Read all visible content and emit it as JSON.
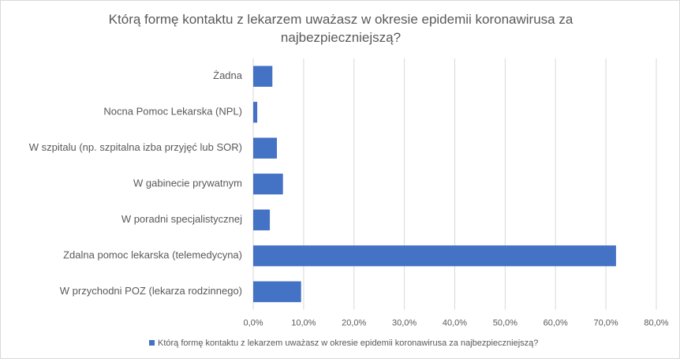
{
  "chart_data": {
    "type": "bar",
    "orientation": "horizontal",
    "title": "Którą formę kontaktu z lekarzem uważasz w okresie epidemii koronawirusa za najbezpieczniejszą?",
    "categories": [
      "Żadna",
      "Nocna Pomoc Lekarska (NPL)",
      "W szpitalu (np. szpitalna izba przyjęć lub SOR)",
      "W gabinecie prywatnym",
      "W poradni specjalistycznej",
      "Zdalna pomoc lekarska (telemedycyna)",
      "W przychodni POZ (lekarza rodzinnego)"
    ],
    "series": [
      {
        "name": "Którą formę kontaktu z lekarzem uważasz w okresie epidemii koronawirusa za najbezpieczniejszą?",
        "color": "#4472c4",
        "values": [
          3.8,
          0.8,
          4.7,
          5.9,
          3.3,
          72.0,
          9.5
        ]
      }
    ],
    "xlim": [
      0,
      80
    ],
    "xticks": [
      {
        "value": 0,
        "label": "0,0%"
      },
      {
        "value": 10,
        "label": "10,0%"
      },
      {
        "value": 20,
        "label": "20,0%"
      },
      {
        "value": 30,
        "label": "30,0%"
      },
      {
        "value": 40,
        "label": "40,0%"
      },
      {
        "value": 50,
        "label": "50,0%"
      },
      {
        "value": 60,
        "label": "60,0%"
      },
      {
        "value": 70,
        "label": "70,0%"
      },
      {
        "value": 80,
        "label": "80,0%"
      }
    ],
    "grid": true,
    "legend": "bottom"
  }
}
